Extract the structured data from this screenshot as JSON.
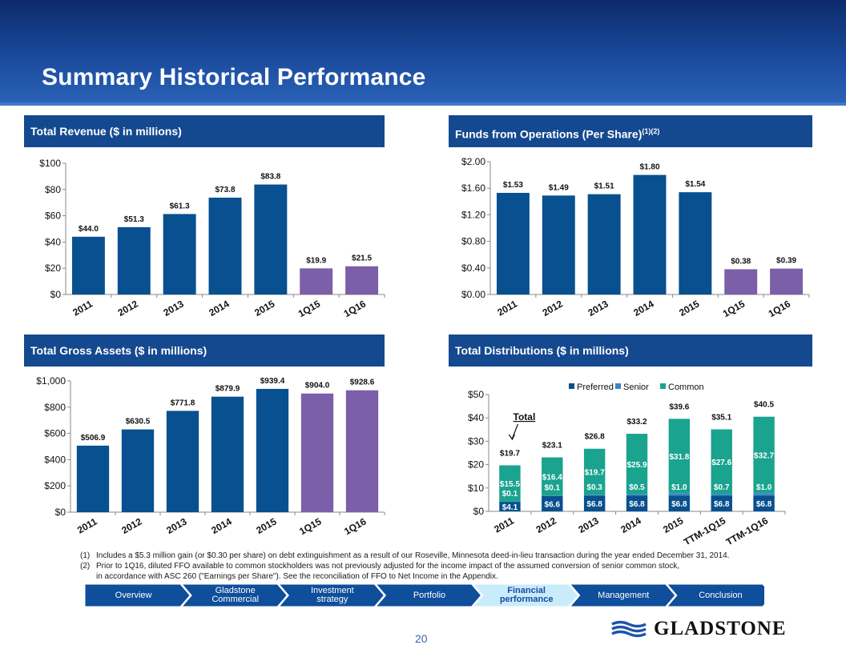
{
  "title": "Summary Historical Performance",
  "panels": {
    "revenue": {
      "title": "Total Revenue ($ in millions)"
    },
    "ffo": {
      "title": "Funds from Operations (Per Share)",
      "sup": "(1)(2)"
    },
    "assets": {
      "title": "Total Gross Assets ($ in millions)"
    },
    "distributions": {
      "title": "Total Distributions ($ in millions)"
    }
  },
  "colors": {
    "annual": "#08508f",
    "quarter": "#7b5fa8",
    "preferred": "#08508f",
    "senior": "#3d86c6",
    "common": "#1aa38f"
  },
  "chart_data": [
    {
      "id": "revenue",
      "type": "bar",
      "categories": [
        "2011",
        "2012",
        "2013",
        "2014",
        "2015",
        "1Q15",
        "1Q16"
      ],
      "values": [
        44.0,
        51.3,
        61.3,
        73.8,
        83.8,
        19.9,
        21.5
      ],
      "labels": [
        "$44.0",
        "$51.3",
        "$61.3",
        "$73.8",
        "$83.8",
        "$19.9",
        "$21.5"
      ],
      "ylim": [
        0,
        100
      ],
      "yticks": [
        "$0",
        "$20",
        "$40",
        "$60",
        "$80",
        "$100"
      ]
    },
    {
      "id": "ffo",
      "type": "bar",
      "categories": [
        "2011",
        "2012",
        "2013",
        "2014",
        "2015",
        "1Q15",
        "1Q16"
      ],
      "values": [
        1.53,
        1.49,
        1.51,
        1.8,
        1.54,
        0.38,
        0.39
      ],
      "labels": [
        "$1.53",
        "$1.49",
        "$1.51",
        "$1.80",
        "$1.54",
        "$0.38",
        "$0.39"
      ],
      "ylim": [
        0,
        2.0
      ],
      "yticks": [
        "$0.00",
        "$0.40",
        "$0.80",
        "$1.20",
        "$1.60",
        "$2.00"
      ]
    },
    {
      "id": "assets",
      "type": "bar",
      "categories": [
        "2011",
        "2012",
        "2013",
        "2014",
        "2015",
        "1Q15",
        "1Q16"
      ],
      "values": [
        506.9,
        630.5,
        771.8,
        879.9,
        939.4,
        904.0,
        928.6
      ],
      "labels": [
        "$506.9",
        "$630.5",
        "$771.8",
        "$879.9",
        "$939.4",
        "$904.0",
        "$928.6"
      ],
      "ylim": [
        0,
        1000
      ],
      "yticks": [
        "$0",
        "$200",
        "$400",
        "$600",
        "$800",
        "$1,000"
      ]
    },
    {
      "id": "distributions",
      "type": "bar",
      "stacked": true,
      "categories": [
        "2011",
        "2012",
        "2013",
        "2014",
        "2015",
        "TTM-1Q15",
        "TTM-1Q16"
      ],
      "series": [
        {
          "name": "Preferred",
          "values": [
            4.1,
            6.6,
            6.8,
            6.8,
            6.8,
            6.8,
            6.8
          ],
          "labels": [
            "$4.1",
            "$6.6",
            "$6.8",
            "$6.8",
            "$6.8",
            "$6.8",
            "$6.8"
          ]
        },
        {
          "name": "Senior",
          "values": [
            0.1,
            0.1,
            0.3,
            0.5,
            1.0,
            0.7,
            1.0
          ],
          "labels": [
            "$0.1",
            "$0.1",
            "$0.3",
            "$0.5",
            "$1.0",
            "$0.7",
            "$1.0"
          ]
        },
        {
          "name": "Common",
          "values": [
            15.5,
            16.4,
            19.7,
            25.9,
            31.8,
            27.6,
            32.7
          ],
          "labels": [
            "$15.5",
            "$16.4",
            "$19.7",
            "$25.9",
            "$31.8",
            "$27.6",
            "$32.7"
          ]
        }
      ],
      "totals": [
        19.7,
        23.1,
        26.8,
        33.2,
        39.6,
        35.1,
        40.5
      ],
      "total_labels": [
        "$19.7",
        "$23.1",
        "$26.8",
        "$33.2",
        "$39.6",
        "$35.1",
        "$40.5"
      ],
      "annotation": "Total",
      "ylim": [
        0,
        50
      ],
      "yticks": [
        "$0",
        "$10",
        "$20",
        "$30",
        "$40",
        "$50"
      ]
    }
  ],
  "footnotes": [
    {
      "num": "(1)",
      "text": "Includes a $5.3 million gain (or $0.30 per share) on debt extinguishment as a result of our Roseville, Minnesota deed-in-lieu transaction during the year ended December 31, 2014."
    },
    {
      "num": "(2)",
      "text": "Prior to 1Q16, diluted FFO available to common stockholders was not previously adjusted for the income impact of the assumed conversion of senior common stock,"
    },
    {
      "num": "",
      "text": "in accordance with ASC 260 (\"Earnings per Share\").  See the reconciliation of FFO to Net Income in the Appendix."
    }
  ],
  "nav": {
    "items": [
      {
        "line1": "Overview",
        "line2": ""
      },
      {
        "line1": "Gladstone",
        "line2": "Commercial"
      },
      {
        "line1": "Investment",
        "line2": "strategy"
      },
      {
        "line1": "Portfolio",
        "line2": ""
      },
      {
        "line1": "Financial",
        "line2": "performance"
      },
      {
        "line1": "Management",
        "line2": ""
      },
      {
        "line1": "Conclusion",
        "line2": ""
      }
    ],
    "active_index": 4
  },
  "page_number": "20",
  "logo": {
    "text": "GLADSTONE"
  }
}
